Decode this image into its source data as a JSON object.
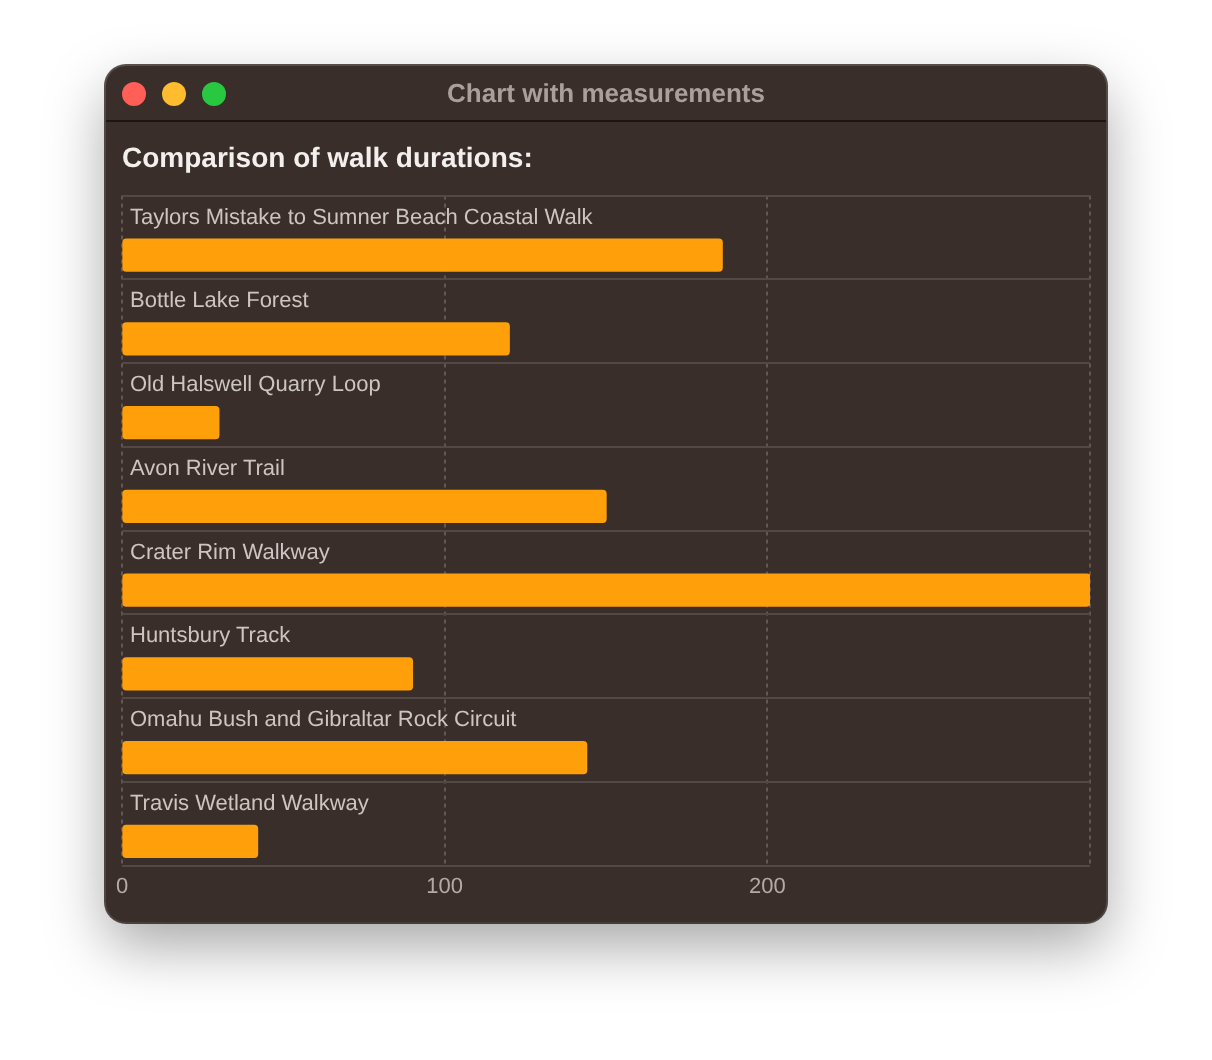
{
  "chart_data": {
    "type": "bar",
    "orientation": "horizontal",
    "title": "Chart with measurements",
    "subtitle": "Comparison of walk durations:",
    "categories": [
      "Taylors Mistake to Sumner Beach Coastal Walk",
      "Bottle Lake Forest",
      "Old Halswell Quarry Loop",
      "Avon River Trail",
      "Crater Rim Walkway",
      "Huntsbury Track",
      "Omahu Bush and Gibraltar Rock Circuit",
      "Travis Wetland Walkway"
    ],
    "values": [
      186,
      120,
      30,
      150,
      300,
      90,
      144,
      42
    ],
    "color": "#ff9f0a",
    "xlim": [
      0,
      300
    ],
    "xticks": [
      0,
      100,
      200,
      {
        "value": 300,
        "label": null
      }
    ],
    "grid": true
  }
}
